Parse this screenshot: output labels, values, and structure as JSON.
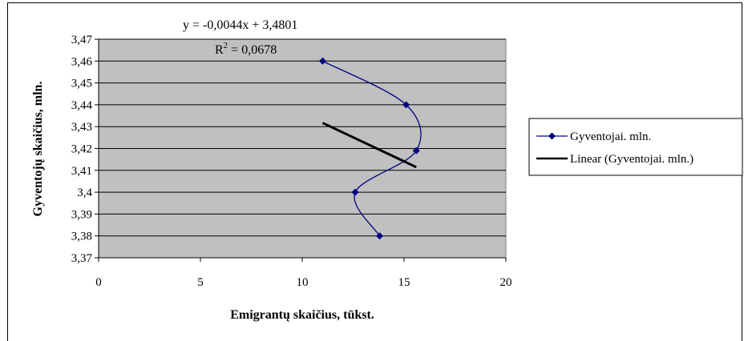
{
  "chart_data": {
    "type": "scatter",
    "xlabel": "Emigrantų skaičius, tūkst.",
    "ylabel": "Gyventojų skaičius, mln.",
    "xlim": [
      0,
      20
    ],
    "ylim": [
      3.37,
      3.47
    ],
    "x_ticks": [
      "0",
      "5",
      "10",
      "15",
      "20"
    ],
    "y_ticks": [
      "3,37",
      "3,38",
      "3,39",
      "3,4",
      "3,41",
      "3,42",
      "3,43",
      "3,44",
      "3,45",
      "3,46",
      "3,47"
    ],
    "grid": true,
    "legend_position": "right",
    "series": [
      {
        "name": "Gyventojai. mln.",
        "color": "#000080",
        "marker": "diamond",
        "line": "smooth",
        "x": [
          11.0,
          15.1,
          15.6,
          12.6,
          13.8
        ],
        "y": [
          3.46,
          3.44,
          3.419,
          3.4,
          3.38
        ]
      }
    ],
    "trendline": {
      "name": "Linear (Gyventojai. mln.)",
      "color": "#000000",
      "slope": -0.0044,
      "intercept": 3.4801,
      "x_range": [
        11.0,
        15.6
      ]
    },
    "annotations": {
      "equation": "y = -0,0044x + 3,4801",
      "r2_prefix": "R",
      "r2_exp": "2",
      "r2_value": " = 0,0678"
    },
    "colors": {
      "plot_background": "#c0c0c0",
      "grid": "#000000"
    }
  }
}
